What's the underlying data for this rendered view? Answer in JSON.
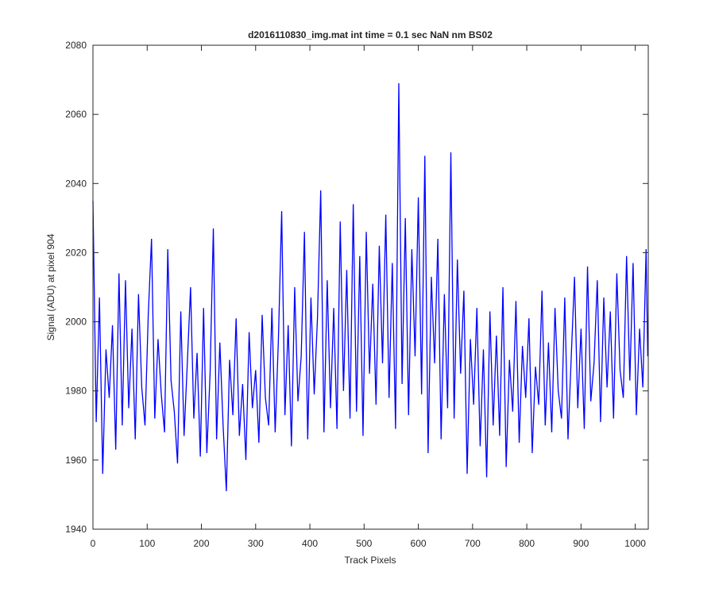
{
  "chart_data": {
    "type": "line",
    "title": "d2016110830_img.mat int time = 0.1 sec  NaN nm BS02",
    "x_label": "Track Pixels",
    "y_label": "Signal (ADU) at pixel 904",
    "xlim": [
      0,
      1024
    ],
    "ylim": [
      1940,
      2080
    ],
    "xticks": [
      0,
      100,
      200,
      300,
      400,
      500,
      600,
      700,
      800,
      900,
      1000
    ],
    "yticks": [
      1940,
      1960,
      1980,
      2000,
      2020,
      2040,
      2060,
      2080
    ],
    "series": [
      {
        "color": "#0000ff",
        "x": [
          0,
          6,
          12,
          18,
          24,
          30,
          36,
          42,
          48,
          54,
          60,
          66,
          72,
          78,
          84,
          90,
          96,
          102,
          108,
          114,
          120,
          126,
          132,
          138,
          144,
          150,
          156,
          162,
          168,
          174,
          180,
          186,
          192,
          198,
          204,
          210,
          216,
          222,
          228,
          234,
          240,
          246,
          252,
          258,
          264,
          270,
          276,
          282,
          288,
          294,
          300,
          306,
          312,
          318,
          324,
          330,
          336,
          342,
          348,
          354,
          360,
          366,
          372,
          378,
          384,
          390,
          396,
          402,
          408,
          414,
          420,
          426,
          432,
          438,
          444,
          450,
          456,
          462,
          468,
          474,
          480,
          486,
          492,
          498,
          504,
          510,
          516,
          522,
          528,
          534,
          540,
          546,
          552,
          558,
          564,
          570,
          576,
          582,
          588,
          594,
          600,
          606,
          612,
          618,
          624,
          630,
          636,
          642,
          648,
          654,
          660,
          666,
          672,
          678,
          684,
          690,
          696,
          702,
          708,
          714,
          720,
          726,
          732,
          738,
          744,
          750,
          756,
          762,
          768,
          774,
          780,
          786,
          792,
          798,
          804,
          810,
          816,
          822,
          828,
          834,
          840,
          846,
          852,
          858,
          864,
          870,
          876,
          882,
          888,
          894,
          900,
          906,
          912,
          918,
          924,
          930,
          936,
          942,
          948,
          954,
          960,
          966,
          972,
          978,
          984,
          990,
          996,
          1002,
          1008,
          1014,
          1020,
          1023
        ],
        "values": [
          2035,
          1971,
          2007,
          1956,
          1992,
          1978,
          1999,
          1963,
          2014,
          1970,
          2012,
          1975,
          1998,
          1966,
          2008,
          1981,
          1970,
          2002,
          2024,
          1972,
          1995,
          1979,
          1968,
          2021,
          1983,
          1974,
          1959,
          2003,
          1967,
          1988,
          2010,
          1972,
          1991,
          1961,
          2004,
          1962,
          1985,
          2027,
          1966,
          1994,
          1970,
          1951,
          1989,
          1973,
          2001,
          1967,
          1982,
          1960,
          1997,
          1975,
          1986,
          1965,
          2002,
          1978,
          1970,
          2004,
          1968,
          1995,
          2032,
          1973,
          1999,
          1964,
          2010,
          1977,
          1990,
          2026,
          1966,
          2007,
          1979,
          2001,
          2038,
          1968,
          2012,
          1975,
          2004,
          1969,
          2029,
          1980,
          2015,
          1972,
          2034,
          1974,
          2019,
          1967,
          2026,
          1985,
          2011,
          1976,
          2022,
          1988,
          2031,
          1978,
          2017,
          1969,
          2069,
          1982,
          2030,
          1973,
          2021,
          1990,
          2036,
          1979,
          2048,
          1962,
          2013,
          1988,
          2024,
          1966,
          2008,
          1975,
          2049,
          1972,
          2018,
          1985,
          2009,
          1956,
          1995,
          1976,
          2004,
          1964,
          1992,
          1955,
          2003,
          1970,
          1996,
          1967,
          2010,
          1958,
          1989,
          1974,
          2006,
          1965,
          1993,
          1978,
          2001,
          1962,
          1987,
          1976,
          2009,
          1970,
          1994,
          1968,
          2004,
          1980,
          1972,
          2007,
          1966,
          1990,
          2013,
          1975,
          1998,
          1969,
          2016,
          1977,
          1988,
          2012,
          1971,
          2007,
          1981,
          2003,
          1972,
          2014,
          1986,
          1978,
          2019,
          1983,
          2017,
          1973,
          1998,
          1981,
          2021,
          1990
        ]
      }
    ]
  }
}
